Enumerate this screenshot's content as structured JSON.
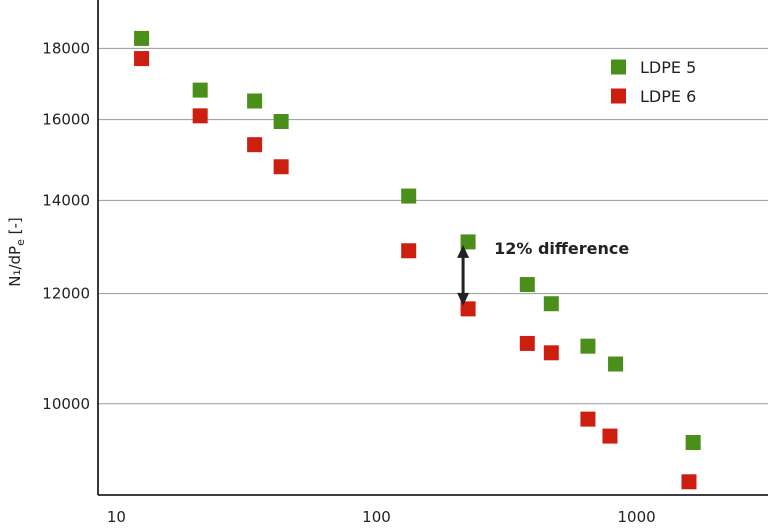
{
  "chart_data": {
    "type": "scatter",
    "title": "",
    "xlabel": "",
    "ylabel": {
      "main": "N₁/dP",
      "sub": "e",
      "unit": " [-]"
    },
    "xscale": "log",
    "yscale": "log",
    "xlim": [
      8.5,
      3200
    ],
    "ylim": [
      8600,
      19500
    ],
    "x_ticks": [
      10,
      100,
      1000
    ],
    "x_tick_labels": [
      "10",
      "100",
      "1000"
    ],
    "y_ticks": [
      10000,
      12000,
      14000,
      16000,
      18000
    ],
    "y_tick_labels": [
      "10000",
      "12000",
      "14000",
      "16000",
      "18000"
    ],
    "grid": "horizontal",
    "legend_position": "top-right",
    "series": [
      {
        "name": "LDPE 5",
        "color": "#4a8f1a",
        "marker": "square",
        "x": [
          12.5,
          21,
          34,
          43,
          133,
          225,
          380,
          470,
          650,
          830,
          1650
        ],
        "y": [
          18300,
          16800,
          16500,
          15950,
          14100,
          13070,
          12180,
          11800,
          11000,
          10680,
          9380
        ]
      },
      {
        "name": "LDPE 6",
        "color": "#cc1f10",
        "marker": "square",
        "x": [
          12.5,
          21,
          34,
          43,
          133,
          225,
          380,
          470,
          650,
          790,
          1590
        ],
        "y": [
          17700,
          16100,
          15350,
          14800,
          12880,
          11700,
          11050,
          10880,
          9750,
          9480,
          8790
        ]
      }
    ],
    "annotations": [
      {
        "text": "12% difference",
        "type": "double-arrow",
        "x": 225,
        "y_from": 11700,
        "y_to": 13070
      }
    ]
  }
}
